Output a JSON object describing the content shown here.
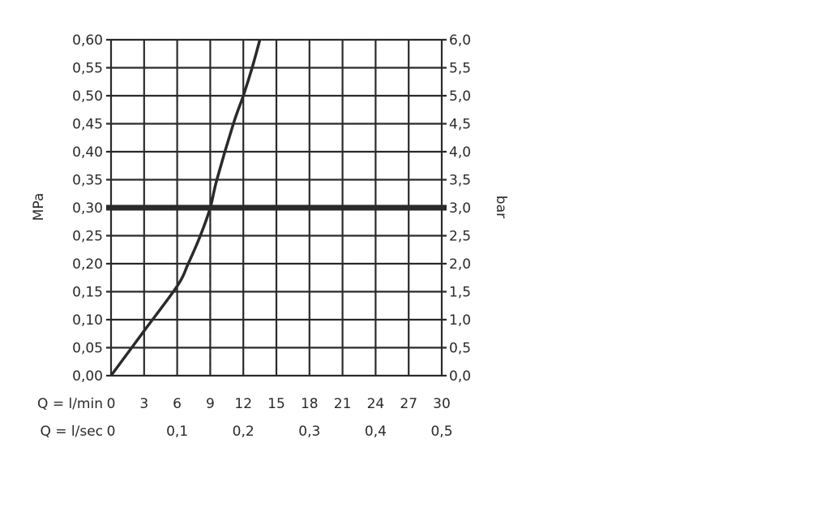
{
  "chart_data": {
    "type": "line",
    "title": "",
    "xlabel": "Q = l/min",
    "x2label": "Q = l/sec",
    "ylabel": "MPa",
    "y2label": "bar",
    "xlim": [
      0,
      30
    ],
    "ylim": [
      0,
      0.6
    ],
    "grid": true,
    "x_ticks": [
      "0",
      "3",
      "6",
      "9",
      "12",
      "15",
      "18",
      "21",
      "24",
      "27",
      "30"
    ],
    "x2_ticks": [
      {
        "at": 0,
        "label": "0"
      },
      {
        "at": 6,
        "label": "0,1"
      },
      {
        "at": 12,
        "label": "0,2"
      },
      {
        "at": 18,
        "label": "0,3"
      },
      {
        "at": 24,
        "label": "0,4"
      },
      {
        "at": 30,
        "label": "0,5"
      }
    ],
    "y_ticks": [
      "0,00",
      "0,05",
      "0,10",
      "0,15",
      "0,20",
      "0,25",
      "0,30",
      "0,35",
      "0,40",
      "0,45",
      "0,50",
      "0,55",
      "0,60"
    ],
    "y2_ticks": [
      "0,0",
      "0,5",
      "1,0",
      "1,5",
      "2,0",
      "2,5",
      "3,0",
      "3,5",
      "4,0",
      "4,5",
      "5,0",
      "5,5",
      "6,0"
    ],
    "series": [
      {
        "x": [
          0,
          3,
          6,
          7,
          8.1,
          9,
          9.6,
          11.1,
          12,
          12.8,
          13.5
        ],
        "y": [
          0,
          0.08,
          0.16,
          0.2,
          0.25,
          0.3,
          0.35,
          0.45,
          0.5,
          0.55,
          0.6
        ]
      }
    ],
    "reference_line": {
      "y": 0.3
    },
    "reference_drop": {
      "x": 9,
      "y": 0.3
    },
    "color": "#2a2a2a"
  }
}
